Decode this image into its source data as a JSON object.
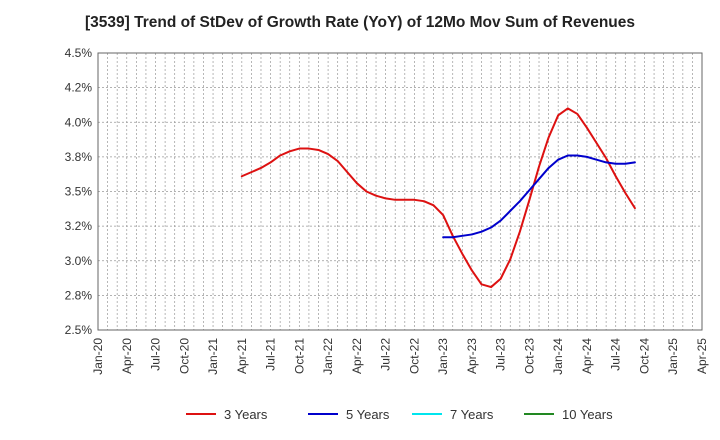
{
  "chart_data": {
    "type": "line",
    "title": "[3539]  Trend of StDev of Growth Rate (YoY) of 12Mo Mov Sum of Revenues",
    "xlabel": "",
    "ylabel": "",
    "ylim": [
      2.5,
      4.5
    ],
    "y_ticks": [
      "2.5%",
      "2.8%",
      "3.0%",
      "3.2%",
      "3.5%",
      "3.8%",
      "4.0%",
      "4.2%",
      "4.5%"
    ],
    "x_ticks": [
      "Jan-20",
      "Apr-20",
      "Jul-20",
      "Oct-20",
      "Jan-21",
      "Apr-21",
      "Jul-21",
      "Oct-21",
      "Jan-22",
      "Apr-22",
      "Jul-22",
      "Oct-22",
      "Jan-23",
      "Apr-23",
      "Jul-23",
      "Oct-23",
      "Jan-24",
      "Apr-24",
      "Jul-24",
      "Oct-24",
      "Jan-25",
      "Apr-25"
    ],
    "grid": true,
    "legend_position": "bottom",
    "series": [
      {
        "name": "3 Years",
        "color": "#dd1111",
        "start_month_index": 15,
        "values": [
          3.61,
          3.64,
          3.67,
          3.71,
          3.76,
          3.79,
          3.81,
          3.81,
          3.8,
          3.77,
          3.72,
          3.64,
          3.56,
          3.5,
          3.47,
          3.45,
          3.44,
          3.44,
          3.44,
          3.43,
          3.4,
          3.33,
          3.18,
          3.05,
          2.93,
          2.83,
          2.81,
          2.87,
          3.01,
          3.21,
          3.44,
          3.68,
          3.89,
          4.05,
          4.1,
          4.06,
          3.96,
          3.85,
          3.74,
          3.61,
          3.49,
          3.38
        ]
      },
      {
        "name": "5 Years",
        "color": "#0000cc",
        "start_month_index": 36,
        "values": [
          3.17,
          3.17,
          3.18,
          3.19,
          3.21,
          3.24,
          3.29,
          3.36,
          3.43,
          3.51,
          3.59,
          3.67,
          3.73,
          3.76,
          3.76,
          3.75,
          3.73,
          3.71,
          3.7,
          3.7,
          3.71
        ]
      },
      {
        "name": "7 Years",
        "color": "#00e5ee",
        "start_month_index": 0,
        "values": []
      },
      {
        "name": "10 Years",
        "color": "#228822",
        "start_month_index": 0,
        "values": []
      }
    ]
  }
}
